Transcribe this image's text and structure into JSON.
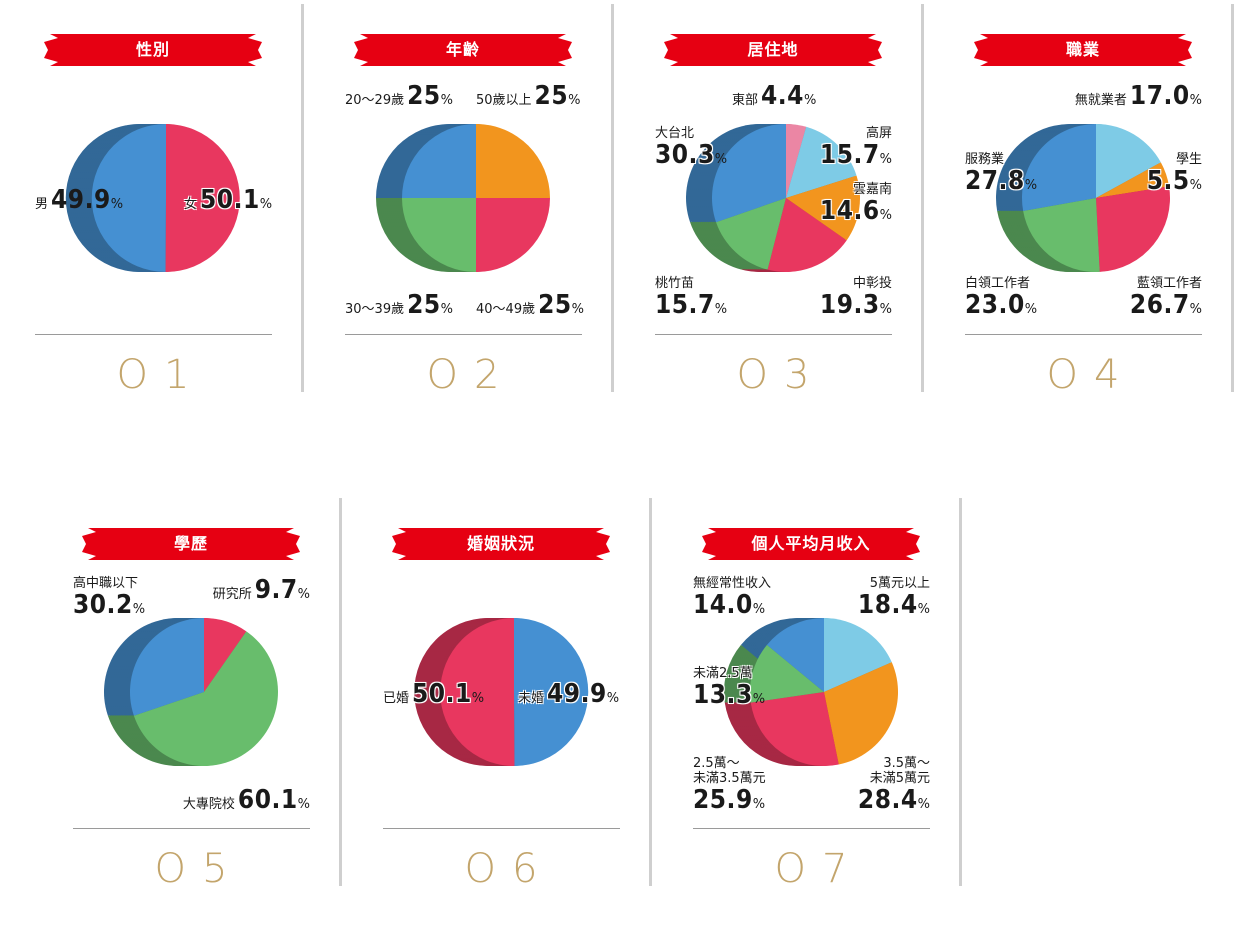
{
  "chart_data": [
    {
      "type": "pie",
      "id": "01",
      "title": "性別",
      "slices": [
        {
          "name": "女",
          "value": 50.1,
          "color": "#e8375f"
        },
        {
          "name": "男",
          "value": 49.9,
          "color": "#4590d2"
        }
      ]
    },
    {
      "type": "pie",
      "id": "02",
      "title": "年齡",
      "slices": [
        {
          "name": "50歲以上",
          "value": 25,
          "color": "#f2951e"
        },
        {
          "name": "40〜49歲",
          "value": 25,
          "color": "#e8375f"
        },
        {
          "name": "30〜39歲",
          "value": 25,
          "color": "#68bd6c"
        },
        {
          "name": "20〜29歲",
          "value": 25,
          "color": "#4590d2"
        }
      ]
    },
    {
      "type": "pie",
      "id": "03",
      "title": "居住地",
      "slices": [
        {
          "name": "東部",
          "value": 4.4,
          "color": "#eb86a4"
        },
        {
          "name": "高屏",
          "value": 15.7,
          "color": "#7ecbe6"
        },
        {
          "name": "雲嘉南",
          "value": 14.6,
          "color": "#f2951e"
        },
        {
          "name": "中彰投",
          "value": 19.3,
          "color": "#e8375f"
        },
        {
          "name": "桃竹苗",
          "value": 15.7,
          "color": "#68bd6c"
        },
        {
          "name": "大台北",
          "value": 30.3,
          "color": "#4590d2"
        }
      ]
    },
    {
      "type": "pie",
      "id": "04",
      "title": "職業",
      "slices": [
        {
          "name": "無就業者",
          "value": 17.0,
          "color": "#7ecbe6"
        },
        {
          "name": "學生",
          "value": 5.5,
          "color": "#f2951e"
        },
        {
          "name": "藍領工作者",
          "value": 26.7,
          "color": "#e8375f"
        },
        {
          "name": "白領工作者",
          "value": 23.0,
          "color": "#68bd6c"
        },
        {
          "name": "服務業",
          "value": 27.8,
          "color": "#4590d2"
        }
      ]
    },
    {
      "type": "pie",
      "id": "05",
      "title": "學歷",
      "slices": [
        {
          "name": "研究所",
          "value": 9.7,
          "color": "#e8375f"
        },
        {
          "name": "大專院校",
          "value": 60.1,
          "color": "#68bd6c"
        },
        {
          "name": "高中職以下",
          "value": 30.2,
          "color": "#4590d2"
        }
      ]
    },
    {
      "type": "pie",
      "id": "06",
      "title": "婚姻狀況",
      "slices": [
        {
          "name": "未婚",
          "value": 49.9,
          "color": "#4590d2"
        },
        {
          "name": "已婚",
          "value": 50.1,
          "color": "#e8375f"
        }
      ]
    },
    {
      "type": "pie",
      "id": "07",
      "title": "個人平均月收入",
      "slices": [
        {
          "name": "5萬元以上",
          "value": 18.4,
          "color": "#7ecbe6"
        },
        {
          "name": "3.5萬〜未滿5萬元",
          "value": 28.4,
          "color": "#f2951e"
        },
        {
          "name": "2.5萬〜未滿3.5萬元",
          "value": 25.9,
          "color": "#e8375f"
        },
        {
          "name": "未滿2.5萬",
          "value": 13.3,
          "color": "#68bd6c"
        },
        {
          "name": "無經常性收入",
          "value": 14.0,
          "color": "#4590d2"
        }
      ]
    }
  ],
  "labels": {
    "c1": {
      "s0n": "女",
      "s0v": "50.1",
      "s1n": "男",
      "s1v": "49.9"
    },
    "c2": {
      "s0n": "50歲以上",
      "s0v": "25",
      "s1n": "40〜49歲",
      "s1v": "25",
      "s2n": "30〜39歲",
      "s2v": "25",
      "s3n": "20〜29歲",
      "s3v": "25"
    },
    "c3": {
      "s0n": "東部",
      "s0v": "4.4",
      "s1n": "高屏",
      "s1v": "15.7",
      "s2n": "雲嘉南",
      "s2v": "14.6",
      "s3n": "中彰投",
      "s3v": "19.3",
      "s4n": "桃竹苗",
      "s4v": "15.7",
      "s5n": "大台北",
      "s5v": "30.3"
    },
    "c4": {
      "s0n": "無就業者",
      "s0v": "17.0",
      "s1n": "學生",
      "s1v": "5.5",
      "s2n": "藍領工作者",
      "s2v": "26.7",
      "s3n": "白領工作者",
      "s3v": "23.0",
      "s4n": "服務業",
      "s4v": "27.8"
    },
    "c5": {
      "s0n": "研究所",
      "s0v": "9.7",
      "s1n": "大專院校",
      "s1v": "60.1",
      "s2n": "高中職以下",
      "s2v": "30.2"
    },
    "c6": {
      "s0n": "未婚",
      "s0v": "49.9",
      "s1n": "已婚",
      "s1v": "50.1"
    },
    "c7": {
      "s0n": "5萬元以上",
      "s0v": "18.4",
      "s1an": "3.5萬〜",
      "s1bn": "未滿5萬元",
      "s1v": "28.4",
      "s2an": "2.5萬〜",
      "s2bn": "未滿3.5萬元",
      "s2v": "25.9",
      "s3n": "未滿2.5萬",
      "s3v": "13.3",
      "s4n": "無經常性收入",
      "s4v": "14.0"
    }
  },
  "pct": "%",
  "numbers": [
    "O1",
    "O2",
    "O3",
    "O4",
    "O5",
    "O6",
    "O7"
  ]
}
